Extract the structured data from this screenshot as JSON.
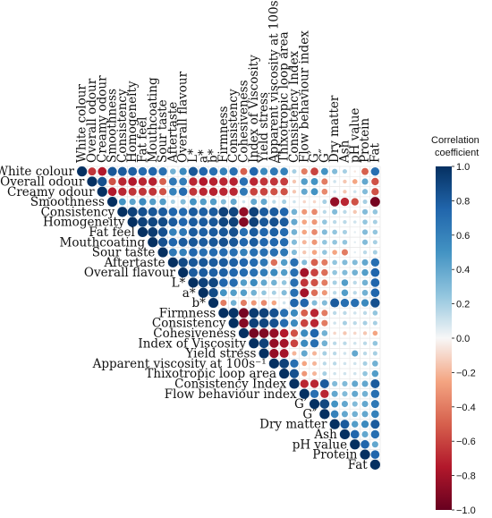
{
  "chart_data": {
    "type": "heatmap",
    "subtype": "upper-triangular correlation matrix (circle size and color encode coefficient)",
    "variables": [
      "White colour",
      "Overall odour",
      "Creamy odour",
      "Smoothness",
      "Consistency",
      "Homogeneity",
      "Fat feel",
      "Mouthcoating",
      "Sour taste",
      "Aftertaste",
      "Overall flavour",
      "L*",
      "a*",
      "b*",
      "Firmness",
      "Consistency",
      "Cohesiveness",
      "Index of Viscosity",
      "Yield stress",
      "Apparent viscosity at 100s-1",
      "Thixotropic loop area",
      "Consistency Index",
      "Flow behaviour index",
      "G'",
      "G''",
      "Dry matter",
      "Ash",
      "pH value",
      "Protein",
      "Fat"
    ],
    "row_labels": [
      "White colour",
      "Overall odour",
      "Creamy odour",
      "Smoothness",
      "Consistency",
      "Homogeneity",
      "Fat feel",
      "Mouthcoating",
      "Sour taste",
      "Aftertaste",
      "Overall flavour",
      "L*",
      "a*",
      "b*",
      "Firmness",
      "Consistency",
      "Cohesiveness",
      "Index of Viscosity",
      "Yield stress",
      "Apparent viscosity at 100s⁻¹",
      "Thixotropic loop area",
      "Consistency Index",
      "Flow behaviour index",
      "G′",
      "G″",
      "Dry matter",
      "Ash",
      "pH value",
      "Protein",
      "Fat"
    ],
    "col_labels": [
      "White colour",
      "Overall odour",
      "Creamy odour",
      "Smoothness",
      "Consistency",
      "Homogeneity",
      "Fat feel",
      "Mouthcoating",
      "Sour taste",
      "Aftertaste",
      "Overall flavour",
      "L*",
      "a*",
      "b*",
      "Firmness",
      "Consistency",
      "Cohesiveness",
      "Index of Viscosity",
      "Yield stress",
      "Apparent viscosity at 100s⁻¹",
      "Thixotropic loop area",
      "Consistency Index",
      "Flow behaviour index",
      "G′",
      "G″",
      "Dry matter",
      "Ash",
      "pH value",
      "Protein",
      "Fat"
    ],
    "values": [
      [
        1.0,
        -0.65,
        -0.75,
        0.82,
        0.8,
        0.78,
        0.72,
        0.75,
        0.7,
        0.35,
        0.55,
        0.82,
        0.75,
        0.7,
        0.6,
        0.7,
        -0.5,
        0.75,
        0.55,
        0.65,
        0.6,
        0.2,
        -0.4,
        -0.6,
        0.5,
        0.3,
        0.2,
        -0.05,
        -0.5,
        0.7
      ],
      [
        -0.65,
        1.0,
        0.85,
        -0.55,
        -0.7,
        -0.75,
        -0.7,
        -0.72,
        -0.5,
        0.65,
        0.62,
        -0.7,
        -0.75,
        -0.72,
        -0.7,
        -0.72,
        0.7,
        -0.7,
        -0.65,
        -0.65,
        -0.62,
        -0.15,
        0.45,
        0.5,
        -0.4,
        0.1,
        -0.15,
        -0.25,
        0.4,
        -0.55
      ],
      [
        -0.75,
        0.85,
        1.0,
        -0.75,
        -0.7,
        -0.65,
        -0.65,
        -0.65,
        -0.55,
        0.6,
        0.72,
        -0.65,
        -0.7,
        -0.72,
        -0.7,
        -0.7,
        0.65,
        -0.6,
        -0.6,
        -0.55,
        -0.55,
        -0.15,
        0.4,
        0.5,
        -0.35,
        0.1,
        -0.15,
        0.1,
        0.3,
        -0.55
      ],
      [
        0.82,
        -0.55,
        -0.75,
        1.0,
        0.5,
        0.42,
        0.55,
        0.45,
        0.45,
        0.2,
        0.3,
        0.5,
        0.45,
        0.45,
        0.3,
        0.4,
        0.1,
        0.4,
        0.4,
        0.15,
        0.2,
        0.1,
        -0.1,
        -0.1,
        0.2,
        -0.85,
        -0.7,
        -0.55,
        0.2,
        -0.95
      ],
      [
        0.8,
        -0.7,
        -0.7,
        0.5,
        1.0,
        0.92,
        0.85,
        0.82,
        0.8,
        0.75,
        0.72,
        0.8,
        0.78,
        0.8,
        0.92,
        0.9,
        -0.85,
        0.92,
        0.8,
        0.8,
        0.75,
        0.35,
        -0.3,
        -0.35,
        0.15,
        0.3,
        0.15,
        -0.15,
        0.3,
        0.25
      ],
      [
        0.78,
        -0.75,
        -0.65,
        0.42,
        0.92,
        1.0,
        0.92,
        0.9,
        0.88,
        0.8,
        0.75,
        0.8,
        0.8,
        0.82,
        0.9,
        0.92,
        -0.9,
        0.92,
        0.82,
        0.85,
        0.8,
        0.4,
        -0.25,
        -0.3,
        0.25,
        0.15,
        0.15,
        0.1,
        0.25,
        0.2
      ],
      [
        0.72,
        -0.7,
        -0.65,
        0.55,
        0.85,
        0.92,
        1.0,
        0.95,
        0.85,
        0.6,
        0.65,
        0.8,
        0.78,
        0.8,
        0.82,
        0.85,
        0.7,
        0.8,
        0.75,
        0.78,
        0.72,
        0.35,
        -0.25,
        -0.35,
        0.3,
        0.25,
        0.2,
        0.05,
        0.3,
        0.25
      ],
      [
        0.75,
        -0.72,
        -0.65,
        0.45,
        0.82,
        0.9,
        0.95,
        1.0,
        0.85,
        0.75,
        0.8,
        0.82,
        0.8,
        0.82,
        0.85,
        0.82,
        0.75,
        0.8,
        0.75,
        0.75,
        0.72,
        0.3,
        -0.2,
        -0.3,
        0.25,
        0.25,
        0.25,
        0.05,
        0.3,
        0.2
      ],
      [
        0.7,
        -0.5,
        -0.55,
        0.45,
        0.8,
        0.88,
        0.85,
        0.85,
        1.0,
        0.65,
        0.6,
        0.75,
        0.7,
        0.72,
        0.72,
        0.7,
        0.6,
        0.7,
        0.7,
        0.7,
        0.65,
        0.3,
        -0.15,
        -0.25,
        0.25,
        -0.25,
        -0.4,
        0.05,
        0.15,
        0.2
      ],
      [
        0.35,
        0.65,
        0.6,
        0.2,
        0.75,
        0.8,
        0.6,
        0.75,
        0.65,
        1.0,
        0.88,
        0.82,
        0.82,
        0.8,
        0.8,
        0.78,
        0.75,
        0.72,
        0.65,
        -0.45,
        0.45,
        0.7,
        0.3,
        -0.5,
        -0.4,
        0.25,
        0.3,
        0.3,
        0.4,
        0.7
      ],
      [
        0.55,
        0.62,
        0.72,
        0.3,
        0.72,
        0.75,
        0.65,
        0.8,
        0.6,
        0.88,
        1.0,
        0.8,
        0.8,
        0.78,
        0.78,
        0.75,
        0.72,
        0.7,
        0.62,
        0.55,
        0.45,
        0.7,
        -0.8,
        -0.6,
        -0.45,
        0.25,
        0.3,
        0.35,
        0.45,
        0.75
      ],
      [
        0.82,
        -0.7,
        -0.65,
        0.5,
        0.8,
        0.8,
        0.8,
        0.82,
        0.75,
        0.82,
        0.8,
        1.0,
        0.92,
        0.9,
        0.75,
        0.72,
        0.45,
        0.55,
        0.4,
        0.35,
        0.25,
        0.7,
        -0.65,
        -0.55,
        -0.4,
        0.2,
        0.45,
        0.15,
        0.35,
        0.75
      ],
      [
        0.75,
        -0.75,
        -0.7,
        0.45,
        0.78,
        0.8,
        0.78,
        0.8,
        0.7,
        0.82,
        0.8,
        0.92,
        1.0,
        0.88,
        0.5,
        0.45,
        0.45,
        0.35,
        0.25,
        0.2,
        0.3,
        0.7,
        -0.8,
        -0.45,
        -0.3,
        0.15,
        0.45,
        0.15,
        0.35,
        0.75
      ],
      [
        0.7,
        -0.72,
        -0.72,
        0.45,
        0.8,
        0.82,
        0.8,
        0.82,
        0.72,
        0.8,
        0.78,
        0.9,
        0.88,
        1.0,
        -0.4,
        0.35,
        -0.4,
        -0.3,
        -0.35,
        -0.25,
        0.1,
        0.75,
        0.75,
        0.3,
        0.3,
        0.8,
        0.7,
        0.7,
        0.55,
        0.85
      ],
      [
        0.6,
        -0.7,
        -0.7,
        0.3,
        0.92,
        0.9,
        0.82,
        0.85,
        0.72,
        0.8,
        0.78,
        0.75,
        0.5,
        -0.4,
        1.0,
        0.98,
        -0.95,
        0.95,
        0.92,
        0.85,
        0.7,
        0.55,
        -0.5,
        -0.7,
        -0.4,
        0.15,
        0.15,
        0.1,
        0.15,
        0.25
      ],
      [
        0.7,
        -0.72,
        -0.7,
        0.4,
        0.9,
        0.92,
        0.85,
        0.82,
        0.7,
        0.78,
        0.75,
        0.72,
        0.45,
        0.35,
        0.98,
        1.0,
        -0.9,
        0.92,
        0.9,
        0.85,
        0.72,
        0.55,
        -0.6,
        -0.7,
        -0.4,
        0.1,
        0.2,
        0.15,
        0.2,
        0.2
      ],
      [
        -0.5,
        0.7,
        0.65,
        0.1,
        -0.85,
        -0.9,
        0.7,
        0.75,
        0.6,
        0.75,
        0.72,
        0.45,
        0.45,
        -0.4,
        -0.95,
        -0.9,
        1.0,
        -0.95,
        -0.92,
        -0.85,
        -0.75,
        -0.55,
        0.55,
        0.75,
        0.35,
        -0.1,
        -0.15,
        -0.1,
        -0.15,
        -0.25
      ],
      [
        0.75,
        -0.7,
        -0.6,
        0.4,
        0.92,
        0.92,
        0.8,
        0.8,
        0.7,
        0.72,
        0.7,
        0.55,
        0.35,
        -0.3,
        0.95,
        0.92,
        -0.95,
        1.0,
        0.92,
        -0.85,
        -0.8,
        -0.6,
        0.55,
        0.7,
        0.35,
        0.15,
        0.15,
        0.1,
        0.15,
        0.25
      ],
      [
        0.55,
        -0.65,
        -0.6,
        0.4,
        0.8,
        0.82,
        0.75,
        0.75,
        0.7,
        0.65,
        0.62,
        0.4,
        0.25,
        -0.35,
        0.92,
        0.9,
        -0.92,
        0.92,
        1.0,
        -0.85,
        -0.8,
        -0.2,
        0.4,
        -0.2,
        0.2,
        0.15,
        0.1,
        0.4,
        0.15,
        0.2
      ],
      [
        0.65,
        -0.65,
        -0.55,
        0.15,
        0.8,
        0.85,
        0.78,
        0.75,
        0.7,
        -0.45,
        0.55,
        0.35,
        0.2,
        -0.25,
        0.85,
        0.85,
        -0.85,
        -0.85,
        -0.85,
        1.0,
        0.92,
        0.7,
        -0.25,
        -0.2,
        0.15,
        0.15,
        0.1,
        0.1,
        0.2,
        0.35
      ],
      [
        0.6,
        -0.62,
        -0.55,
        0.2,
        0.75,
        0.8,
        0.72,
        0.72,
        0.65,
        0.45,
        0.45,
        0.25,
        0.3,
        0.1,
        0.7,
        0.72,
        -0.75,
        -0.8,
        -0.8,
        0.92,
        1.0,
        0.85,
        -0.3,
        -0.2,
        0.2,
        0.1,
        0.1,
        0.1,
        0.25,
        0.45
      ],
      [
        0.2,
        -0.15,
        -0.15,
        0.1,
        0.35,
        0.4,
        0.35,
        0.3,
        0.3,
        0.7,
        0.7,
        0.7,
        0.7,
        0.75,
        0.55,
        0.55,
        -0.55,
        -0.6,
        -0.2,
        0.7,
        0.85,
        1.0,
        -0.7,
        -0.7,
        0.8,
        0.3,
        0.3,
        0.4,
        0.4,
        0.8
      ],
      [
        -0.4,
        0.45,
        0.4,
        -0.1,
        -0.3,
        -0.25,
        -0.25,
        -0.2,
        -0.15,
        0.3,
        -0.8,
        -0.65,
        -0.8,
        0.75,
        -0.5,
        -0.6,
        0.55,
        0.55,
        0.4,
        -0.25,
        -0.3,
        -0.7,
        1.0,
        0.7,
        -0.7,
        0.4,
        0.3,
        0.4,
        0.35,
        0.7
      ],
      [
        -0.6,
        0.5,
        0.5,
        -0.1,
        -0.35,
        -0.3,
        -0.35,
        -0.3,
        -0.25,
        -0.5,
        -0.6,
        -0.55,
        -0.45,
        0.3,
        -0.7,
        -0.7,
        0.75,
        0.7,
        -0.2,
        -0.2,
        -0.2,
        -0.7,
        0.7,
        1.0,
        0.9,
        0.5,
        0.4,
        0.3,
        0.4,
        0.65
      ],
      [
        0.5,
        -0.4,
        -0.35,
        0.2,
        0.15,
        0.25,
        0.3,
        0.25,
        0.25,
        -0.4,
        -0.45,
        -0.4,
        -0.3,
        0.3,
        -0.4,
        -0.4,
        0.35,
        0.35,
        0.2,
        0.15,
        0.2,
        0.8,
        -0.7,
        0.9,
        1.0,
        0.6,
        0.4,
        0.35,
        0.4,
        0.6
      ],
      [
        0.3,
        0.1,
        0.1,
        -0.85,
        0.3,
        0.15,
        0.25,
        0.25,
        -0.25,
        0.25,
        0.25,
        0.2,
        0.15,
        0.8,
        0.15,
        0.1,
        -0.1,
        0.15,
        0.15,
        0.15,
        0.1,
        0.3,
        0.4,
        0.5,
        0.6,
        1.0,
        0.8,
        0.45,
        0.55,
        0.8
      ],
      [
        0.2,
        -0.15,
        -0.15,
        -0.7,
        0.15,
        0.15,
        0.2,
        0.25,
        -0.4,
        0.3,
        0.3,
        0.45,
        0.45,
        0.7,
        0.15,
        0.2,
        -0.15,
        0.15,
        0.1,
        0.1,
        0.1,
        0.3,
        0.3,
        0.4,
        0.4,
        0.8,
        1.0,
        0.75,
        0.4,
        0.7
      ],
      [
        -0.05,
        -0.25,
        0.1,
        -0.55,
        -0.15,
        0.1,
        0.05,
        0.05,
        0.05,
        0.3,
        0.35,
        0.15,
        0.15,
        0.7,
        0.1,
        0.15,
        -0.1,
        0.1,
        0.4,
        0.1,
        0.1,
        0.4,
        0.4,
        0.3,
        0.35,
        0.45,
        0.75,
        1.0,
        0.75,
        0.4
      ],
      [
        -0.5,
        0.4,
        0.3,
        0.2,
        0.3,
        0.25,
        0.3,
        0.3,
        0.15,
        0.4,
        0.45,
        0.35,
        0.35,
        0.55,
        0.15,
        0.2,
        -0.15,
        0.15,
        0.15,
        0.2,
        0.25,
        0.4,
        0.35,
        0.4,
        0.4,
        0.55,
        0.4,
        0.75,
        1.0,
        0.75
      ],
      [
        0.7,
        -0.55,
        -0.55,
        -0.95,
        0.25,
        0.2,
        0.25,
        0.2,
        0.2,
        0.7,
        0.75,
        0.75,
        0.75,
        0.85,
        0.25,
        0.2,
        -0.25,
        0.25,
        0.2,
        0.35,
        0.45,
        0.8,
        0.7,
        0.65,
        0.6,
        0.8,
        0.7,
        0.4,
        0.75,
        1.0
      ]
    ],
    "legend": {
      "title_line1": "Correlation",
      "title_line2": "coefficient",
      "ticks": [
        "1.0",
        "0.8",
        "0.6",
        "0.4",
        "0.2",
        "0.0",
        "−0.2",
        "−0.4",
        "−0.6",
        "−0.8",
        "−1.0"
      ],
      "range": [
        -1,
        1
      ],
      "placement": "right",
      "colormap": "RdBu"
    },
    "colors": {
      "negative_strong": "#67001f",
      "negative_mid": "#d6604d",
      "neutral": "#f7f7f7",
      "positive_mid": "#4393c3",
      "positive_strong": "#053061",
      "grid": "#e6e6e6"
    },
    "grid": true
  }
}
